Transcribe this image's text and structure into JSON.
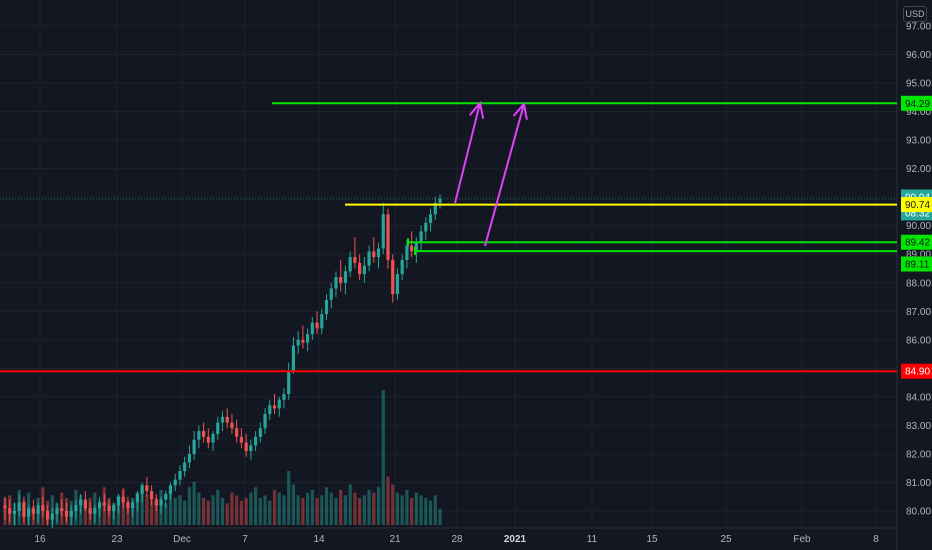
{
  "price_scale": {
    "currency": "USD",
    "ticks": [
      "97.00",
      "96.00",
      "95.00",
      "94.00",
      "93.00",
      "92.00",
      "91.00",
      "90.00",
      "89.00",
      "88.00",
      "87.00",
      "86.00",
      "85.00",
      "84.00",
      "83.00",
      "82.00",
      "81.00",
      "80.00"
    ]
  },
  "time_axis": {
    "ticks": [
      {
        "label": "16",
        "bold": false
      },
      {
        "label": "23",
        "bold": false
      },
      {
        "label": "Dec",
        "bold": false
      },
      {
        "label": "7",
        "bold": false
      },
      {
        "label": "14",
        "bold": false
      },
      {
        "label": "21",
        "bold": false
      },
      {
        "label": "28",
        "bold": false
      },
      {
        "label": "2021",
        "bold": true
      },
      {
        "label": "11",
        "bold": false
      },
      {
        "label": "15",
        "bold": false
      },
      {
        "label": "25",
        "bold": false
      },
      {
        "label": "Feb",
        "bold": false
      },
      {
        "label": "8",
        "bold": false
      }
    ]
  },
  "price_badges": [
    {
      "label": "94.29",
      "color": "#00e600",
      "text_color": "#131722"
    },
    {
      "label": "90.94",
      "color": "#26a69a",
      "text_color": "#ffffff"
    },
    {
      "label": "08:32",
      "color": "#26a69a",
      "text_color": "#ffffff"
    },
    {
      "label": "90.74",
      "color": "#ffff00",
      "text_color": "#131722"
    },
    {
      "label": "89.42",
      "color": "#00e600",
      "text_color": "#131722"
    },
    {
      "label": "89.11",
      "color": "#00e600",
      "text_color": "#131722"
    },
    {
      "label": "84.90",
      "color": "#ff0000",
      "text_color": "#ffffff"
    }
  ],
  "chart_data": {
    "type": "candlestick",
    "series": [
      {
        "name": "",
        "up_color": "#26a69a",
        "down_color": "#ef5350",
        "ohlc": [
          [
            80.2,
            80.5,
            79.7,
            80.1
          ],
          [
            80.1,
            80.4,
            79.6,
            79.9
          ],
          [
            79.9,
            80.3,
            79.5,
            80.0
          ],
          [
            80.0,
            80.6,
            79.8,
            80.3
          ],
          [
            80.3,
            80.5,
            79.6,
            79.8
          ],
          [
            79.8,
            80.2,
            79.5,
            80.1
          ],
          [
            80.1,
            80.4,
            79.7,
            79.9
          ],
          [
            79.9,
            80.3,
            79.6,
            80.2
          ],
          [
            80.2,
            80.5,
            79.8,
            80.0
          ],
          [
            80.0,
            80.2,
            79.5,
            79.7
          ],
          [
            79.7,
            80.1,
            79.4,
            79.9
          ],
          [
            79.9,
            80.3,
            79.6,
            80.1
          ],
          [
            80.1,
            80.4,
            79.8,
            80.0
          ],
          [
            80.0,
            80.3,
            79.6,
            79.8
          ],
          [
            79.8,
            80.2,
            79.5,
            80.0
          ],
          [
            80.0,
            80.4,
            79.7,
            80.2
          ],
          [
            80.2,
            80.6,
            79.9,
            80.4
          ],
          [
            80.4,
            80.7,
            80.0,
            80.1
          ],
          [
            80.1,
            80.3,
            79.7,
            79.9
          ],
          [
            79.9,
            80.2,
            79.6,
            80.1
          ],
          [
            80.1,
            80.5,
            79.8,
            80.3
          ],
          [
            80.3,
            80.6,
            80.0,
            80.2
          ],
          [
            80.2,
            80.4,
            79.8,
            80.0
          ],
          [
            80.0,
            80.3,
            79.7,
            80.2
          ],
          [
            80.2,
            80.6,
            79.9,
            80.5
          ],
          [
            80.5,
            80.8,
            80.1,
            80.3
          ],
          [
            80.3,
            80.5,
            79.9,
            80.1
          ],
          [
            80.1,
            80.4,
            79.8,
            80.3
          ],
          [
            80.3,
            80.7,
            80.0,
            80.6
          ],
          [
            80.6,
            81.0,
            80.3,
            80.9
          ],
          [
            80.9,
            81.2,
            80.5,
            80.7
          ],
          [
            80.7,
            80.9,
            80.2,
            80.4
          ],
          [
            80.4,
            80.6,
            80.0,
            80.2
          ],
          [
            80.2,
            80.5,
            79.9,
            80.4
          ],
          [
            80.4,
            80.7,
            80.1,
            80.6
          ],
          [
            80.6,
            81.0,
            80.4,
            80.9
          ],
          [
            80.9,
            81.3,
            80.7,
            81.1
          ],
          [
            81.1,
            81.6,
            80.9,
            81.4
          ],
          [
            81.4,
            81.9,
            81.2,
            81.7
          ],
          [
            81.7,
            82.3,
            81.5,
            82.0
          ],
          [
            82.0,
            82.8,
            81.8,
            82.5
          ],
          [
            82.5,
            83.0,
            82.2,
            82.8
          ],
          [
            82.8,
            83.1,
            82.4,
            82.6
          ],
          [
            82.6,
            82.9,
            82.2,
            82.4
          ],
          [
            82.4,
            82.8,
            82.1,
            82.7
          ],
          [
            82.7,
            83.3,
            82.5,
            83.1
          ],
          [
            83.1,
            83.5,
            82.8,
            83.3
          ],
          [
            83.3,
            83.6,
            82.9,
            83.1
          ],
          [
            83.1,
            83.4,
            82.7,
            82.9
          ],
          [
            82.9,
            83.2,
            82.4,
            82.6
          ],
          [
            82.6,
            82.9,
            82.2,
            82.4
          ],
          [
            82.4,
            82.7,
            81.9,
            82.1
          ],
          [
            82.1,
            82.5,
            81.8,
            82.3
          ],
          [
            82.3,
            82.8,
            82.1,
            82.6
          ],
          [
            82.6,
            83.1,
            82.4,
            82.9
          ],
          [
            82.9,
            83.6,
            82.7,
            83.4
          ],
          [
            83.4,
            83.9,
            83.2,
            83.7
          ],
          [
            83.7,
            84.1,
            83.4,
            83.6
          ],
          [
            83.6,
            84.0,
            83.3,
            83.9
          ],
          [
            83.9,
            84.3,
            83.6,
            84.1
          ],
          [
            84.1,
            85.2,
            83.9,
            84.9
          ],
          [
            84.9,
            86.1,
            84.8,
            85.8
          ],
          [
            85.8,
            86.3,
            85.5,
            86.0
          ],
          [
            86.0,
            86.5,
            85.7,
            85.9
          ],
          [
            85.9,
            86.4,
            85.6,
            86.2
          ],
          [
            86.2,
            86.8,
            86.0,
            86.6
          ],
          [
            86.6,
            87.0,
            86.2,
            86.4
          ],
          [
            86.4,
            87.1,
            86.2,
            86.9
          ],
          [
            86.9,
            87.6,
            86.7,
            87.4
          ],
          [
            87.4,
            88.0,
            87.1,
            87.8
          ],
          [
            87.8,
            88.4,
            87.5,
            88.2
          ],
          [
            88.2,
            88.8,
            87.7,
            88.0
          ],
          [
            88.0,
            88.6,
            87.6,
            88.4
          ],
          [
            88.4,
            89.1,
            88.2,
            88.9
          ],
          [
            88.9,
            89.6,
            88.5,
            88.7
          ],
          [
            88.7,
            89.0,
            88.1,
            88.3
          ],
          [
            88.3,
            88.9,
            88.0,
            88.6
          ],
          [
            88.6,
            89.3,
            88.4,
            89.1
          ],
          [
            89.1,
            89.6,
            88.7,
            88.9
          ],
          [
            88.9,
            89.4,
            88.5,
            89.2
          ],
          [
            89.2,
            90.8,
            89.0,
            90.4
          ],
          [
            90.4,
            90.6,
            88.5,
            88.8
          ],
          [
            88.8,
            89.0,
            87.3,
            87.6
          ],
          [
            87.6,
            88.5,
            87.4,
            88.3
          ],
          [
            88.3,
            89.0,
            88.1,
            88.8
          ],
          [
            88.8,
            89.5,
            88.5,
            89.3
          ],
          [
            89.3,
            89.8,
            88.9,
            89.1
          ],
          [
            89.1,
            89.6,
            88.7,
            89.4
          ],
          [
            89.4,
            90.0,
            89.1,
            89.8
          ],
          [
            89.8,
            90.3,
            89.5,
            90.1
          ],
          [
            90.1,
            90.6,
            89.8,
            90.4
          ],
          [
            90.4,
            91.0,
            90.2,
            90.8
          ],
          [
            90.8,
            91.1,
            90.6,
            90.94
          ]
        ],
        "volume": [
          1,
          1.1,
          0.8,
          1.3,
          0.9,
          1.2,
          0.7,
          1.0,
          1.4,
          0.9,
          1.1,
          0.8,
          1.2,
          1.0,
          0.9,
          1.3,
          1.1,
          0.8,
          1.0,
          1.2,
          0.9,
          1.4,
          1.0,
          0.8,
          1.1,
          1.3,
          0.9,
          1.0,
          1.2,
          1.5,
          1.1,
          0.9,
          1.0,
          1.3,
          0.8,
          1.2,
          1.0,
          1.1,
          0.9,
          1.4,
          1.6,
          1.2,
          1.0,
          0.9,
          1.1,
          1.3,
          1.0,
          0.8,
          1.2,
          1.1,
          0.9,
          1.0,
          1.2,
          1.4,
          1.0,
          1.1,
          0.9,
          1.3,
          1.2,
          1.1,
          2.0,
          1.5,
          1.1,
          1.0,
          1.2,
          1.3,
          1.0,
          1.1,
          1.4,
          1.2,
          1.0,
          1.3,
          1.1,
          1.5,
          1.2,
          1.0,
          1.1,
          1.3,
          1.2,
          1.4,
          5.0,
          1.8,
          1.5,
          1.2,
          1.1,
          1.3,
          1.0,
          1.2,
          1.1,
          1.0,
          0.9,
          1.1,
          0.6
        ]
      }
    ],
    "ylim": [
      79.7,
      97.3
    ],
    "levels": [
      94.29,
      90.74,
      89.42,
      89.11,
      84.9
    ],
    "grid": true,
    "legend": "none"
  }
}
